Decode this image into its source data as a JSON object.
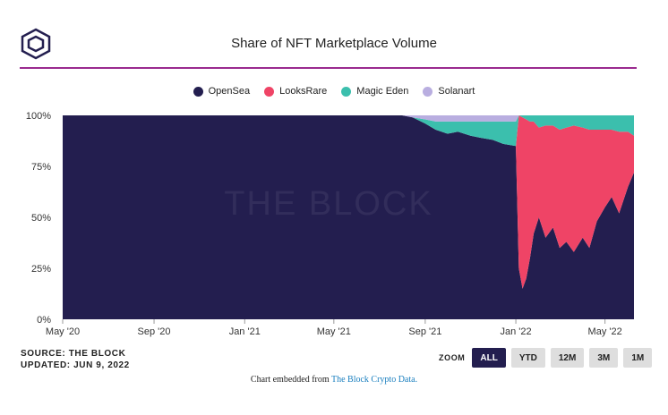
{
  "header": {
    "title": "Share of NFT Marketplace Volume",
    "logo_icon": "the-block-cube-icon"
  },
  "watermark": "THE BLOCK",
  "footer": {
    "source": "SOURCE: THE BLOCK",
    "updated": "UPDATED: JUN 9, 2022",
    "embed_prefix": "Chart embedded from",
    "embed_link": "The Block Crypto Data."
  },
  "zoom": {
    "label": "ZOOM",
    "buttons": [
      "ALL",
      "YTD",
      "12M",
      "3M",
      "1M"
    ],
    "active": "ALL"
  },
  "colors": {
    "OpenSea": "#231e4f",
    "LooksRare": "#ef4466",
    "Magic Eden": "#3bbfad",
    "Solanart": "#b9aee0",
    "accent_rule": "#9a2a8f"
  },
  "chart_data": {
    "type": "area",
    "stacked": true,
    "stacking": "percent",
    "title": "Share of NFT Marketplace Volume",
    "legend_position": "top-center",
    "grid": false,
    "y_ticks": [
      "0%",
      "25%",
      "50%",
      "75%",
      "100%"
    ],
    "ylim": [
      0,
      100
    ],
    "x_tick_labels": [
      "May '20",
      "Sep '20",
      "Jan '21",
      "May '21",
      "Sep '21",
      "Jan '22",
      "May '22"
    ],
    "x_dates": [
      "2020-05-01",
      "2020-06-15",
      "2020-08-01",
      "2020-09-15",
      "2020-11-01",
      "2020-12-15",
      "2021-02-01",
      "2021-03-15",
      "2021-05-01",
      "2021-06-15",
      "2021-08-01",
      "2021-08-15",
      "2021-09-01",
      "2021-09-15",
      "2021-10-01",
      "2021-10-15",
      "2021-11-01",
      "2021-11-15",
      "2021-12-01",
      "2021-12-15",
      "2022-01-01",
      "2022-01-05",
      "2022-01-10",
      "2022-01-15",
      "2022-01-20",
      "2022-01-25",
      "2022-02-01",
      "2022-02-10",
      "2022-02-20",
      "2022-03-01",
      "2022-03-10",
      "2022-03-20",
      "2022-04-01",
      "2022-04-10",
      "2022-04-20",
      "2022-05-01",
      "2022-05-10",
      "2022-05-20",
      "2022-06-01",
      "2022-06-09"
    ],
    "series": [
      {
        "name": "OpenSea",
        "values": [
          100,
          100,
          100,
          100,
          100,
          100,
          100,
          100,
          100,
          100,
          100,
          99,
          96,
          93,
          91,
          92,
          90,
          89,
          88,
          86,
          85,
          25,
          15,
          20,
          30,
          42,
          50,
          40,
          45,
          35,
          38,
          33,
          40,
          35,
          48,
          55,
          60,
          52,
          65,
          72
        ]
      },
      {
        "name": "LooksRare",
        "values": [
          0,
          0,
          0,
          0,
          0,
          0,
          0,
          0,
          0,
          0,
          0,
          0,
          0,
          0,
          0,
          0,
          0,
          0,
          0,
          0,
          0,
          75,
          84,
          78,
          67,
          55,
          44,
          55,
          50,
          58,
          56,
          62,
          54,
          58,
          45,
          38,
          33,
          40,
          27,
          18
        ]
      },
      {
        "name": "Magic Eden",
        "values": [
          0,
          0,
          0,
          0,
          0,
          0,
          0,
          0,
          0,
          0,
          0,
          0,
          2,
          4,
          6,
          5,
          7,
          8,
          9,
          11,
          12,
          0,
          1,
          2,
          3,
          3,
          6,
          5,
          5,
          7,
          6,
          5,
          6,
          7,
          7,
          7,
          7,
          8,
          8,
          10
        ]
      },
      {
        "name": "Solanart",
        "values": [
          0,
          0,
          0,
          0,
          0,
          0,
          0,
          0,
          0,
          0,
          0,
          1,
          2,
          3,
          3,
          3,
          3,
          3,
          3,
          3,
          3,
          0,
          0,
          0,
          0,
          0,
          0,
          0,
          0,
          0,
          0,
          0,
          0,
          0,
          0,
          0,
          0,
          0,
          0,
          0
        ]
      }
    ]
  }
}
